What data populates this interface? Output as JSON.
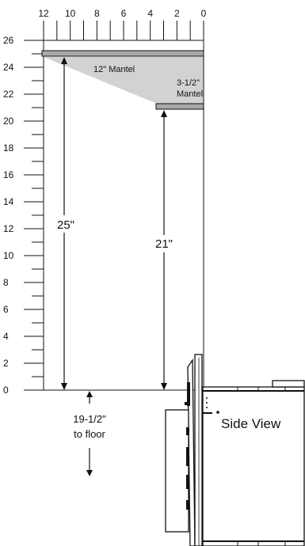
{
  "top_scale": {
    "labels": [
      "12",
      "10",
      "8",
      "6",
      "4",
      "2",
      "0"
    ]
  },
  "left_scale": {
    "labels": [
      "26",
      "24",
      "22",
      "20",
      "18",
      "16",
      "14",
      "12",
      "10",
      "8",
      "6",
      "4",
      "2",
      "0"
    ]
  },
  "mantel_large": {
    "label": "12\" Mantel"
  },
  "mantel_small": {
    "label_line1": "3-1/2\"",
    "label_line2": "Mantel"
  },
  "dim_left": {
    "label": "25\""
  },
  "dim_right": {
    "label": "21\""
  },
  "floor_note": {
    "line1": "19-1/2\"",
    "line2": "to floor"
  },
  "view_label": "Side View",
  "colors": {
    "shade": "#d2d2d2",
    "mantel": "#a8a8a8",
    "ink": "#111111"
  }
}
